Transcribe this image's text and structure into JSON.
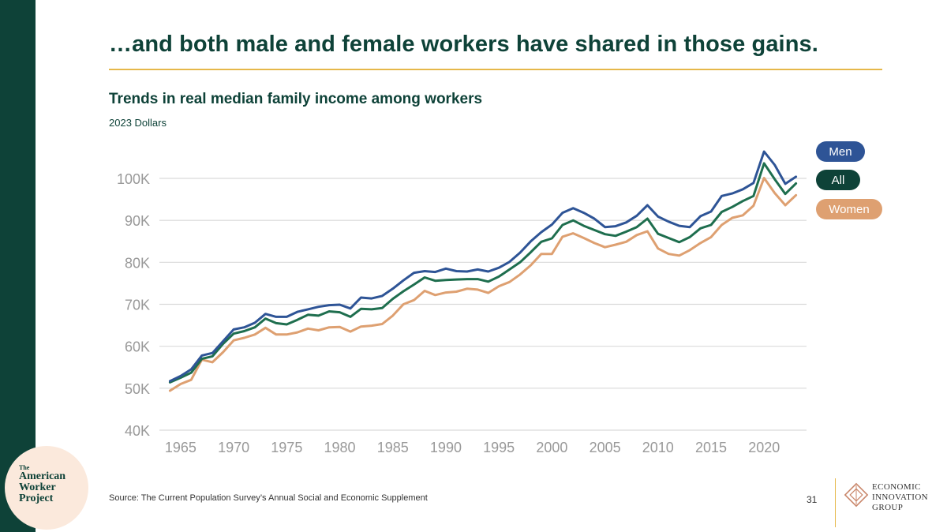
{
  "slide": {
    "title": "…and both male and female workers have shared in those gains.",
    "page_number": "31",
    "source": "Source: The Current Population Survey’s Annual Social and Economic Supplement"
  },
  "colors": {
    "dark_green": "#0e4238",
    "gold": "#e6b84a",
    "men": "#2e5496",
    "all": "#1e6e4e",
    "women": "#dea071",
    "grid": "#d9d9d9",
    "tick_text": "#999999"
  },
  "logos": {
    "awp": {
      "the": "The",
      "line1": "American",
      "line2": "Worker",
      "line3": "Project"
    },
    "eig": {
      "line1": "ECONOMIC",
      "line2": "INNOVATION",
      "line3": "GROUP",
      "icon": "diamond-logo-icon"
    }
  },
  "chart_data": {
    "type": "line",
    "title": "Trends in real median family income among workers",
    "subtitle": "2023 Dollars",
    "xlabel": "",
    "ylabel": "",
    "xlim": [
      1963,
      2024
    ],
    "ylim": [
      40000,
      100000
    ],
    "grid": "horizontal",
    "legend_position": "right",
    "x_ticks": [
      1965,
      1970,
      1975,
      1980,
      1985,
      1990,
      1995,
      2000,
      2005,
      2010,
      2015,
      2020
    ],
    "y_ticks": [
      {
        "value": 40000,
        "label": "40K"
      },
      {
        "value": 50000,
        "label": "50K"
      },
      {
        "value": 60000,
        "label": "60K"
      },
      {
        "value": 70000,
        "label": "70K"
      },
      {
        "value": 80000,
        "label": "80K"
      },
      {
        "value": 90000,
        "label": "90K"
      },
      {
        "value": 100000,
        "label": "100K"
      }
    ],
    "x": [
      1964,
      1965,
      1966,
      1967,
      1968,
      1969,
      1970,
      1971,
      1972,
      1973,
      1974,
      1975,
      1976,
      1977,
      1978,
      1979,
      1980,
      1981,
      1982,
      1983,
      1984,
      1985,
      1986,
      1987,
      1988,
      1989,
      1990,
      1991,
      1992,
      1993,
      1994,
      1995,
      1996,
      1997,
      1998,
      1999,
      2000,
      2001,
      2002,
      2003,
      2004,
      2005,
      2006,
      2007,
      2008,
      2009,
      2010,
      2011,
      2012,
      2013,
      2014,
      2015,
      2016,
      2017,
      2018,
      2019,
      2020,
      2021,
      2022,
      2023
    ],
    "series": [
      {
        "name": "Men",
        "color_key": "men",
        "values": [
          51700,
          52900,
          54500,
          57800,
          58400,
          61200,
          64000,
          64500,
          65600,
          67700,
          67000,
          67000,
          68200,
          68800,
          69400,
          69800,
          69900,
          69000,
          71600,
          71400,
          72000,
          73700,
          75700,
          77500,
          77900,
          77700,
          78500,
          77900,
          77800,
          78300,
          77800,
          78700,
          80100,
          82300,
          85000,
          87200,
          89000,
          91800,
          92900,
          91800,
          90400,
          88400,
          88600,
          89500,
          91100,
          93600,
          90900,
          89700,
          88700,
          88400,
          91000,
          92100,
          95800,
          96400,
          97400,
          98900,
          106400,
          103200,
          98700,
          100400
        ]
      },
      {
        "name": "All",
        "color_key": "all",
        "values": [
          51400,
          52500,
          53700,
          57000,
          57600,
          60600,
          63000,
          63600,
          64500,
          66600,
          65500,
          65200,
          66300,
          67500,
          67300,
          68300,
          68100,
          67000,
          68900,
          68800,
          69100,
          71300,
          73100,
          74700,
          76400,
          75600,
          75800,
          75900,
          76000,
          76000,
          75400,
          76600,
          78300,
          80000,
          82400,
          84900,
          85700,
          88900,
          90000,
          88700,
          87700,
          86700,
          86300,
          87300,
          88400,
          90400,
          86800,
          85800,
          84800,
          86000,
          88100,
          88900,
          92000,
          93200,
          94600,
          95800,
          103600,
          99800,
          96300,
          98800
        ]
      },
      {
        "name": "Women",
        "color_key": "women",
        "values": [
          49400,
          51000,
          52000,
          56800,
          56200,
          58600,
          61400,
          62000,
          62800,
          64400,
          62800,
          62800,
          63300,
          64200,
          63800,
          64500,
          64600,
          63500,
          64700,
          64900,
          65300,
          67300,
          70000,
          71000,
          73200,
          72200,
          72800,
          73000,
          73700,
          73500,
          72700,
          74300,
          75300,
          77100,
          79300,
          82000,
          82000,
          86100,
          86900,
          85800,
          84600,
          83600,
          84200,
          84900,
          86500,
          87400,
          83300,
          82000,
          81600,
          82900,
          84600,
          86000,
          88900,
          90600,
          91200,
          93500,
          100100,
          96500,
          93600,
          96000
        ]
      }
    ]
  }
}
